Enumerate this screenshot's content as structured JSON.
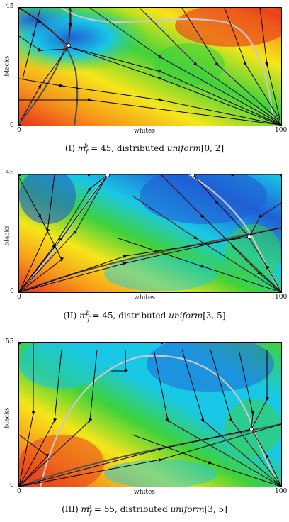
{
  "figures": [
    {
      "id": "I",
      "y_axis_label": "blacks",
      "x_axis_label": "whites",
      "y_max_tick": "45",
      "y_min_tick": "0",
      "x_min_tick": "0",
      "x_max_tick": "100",
      "caption_num": "(I)",
      "caption_math": "m",
      "caption_sub": "f",
      "caption_sup": "b",
      "caption_eq": " = 45, distributed ",
      "caption_dist": "uniform",
      "caption_range": "[0, 2]"
    },
    {
      "id": "II",
      "y_axis_label": "blacks",
      "x_axis_label": "whites",
      "y_max_tick": "45",
      "y_min_tick": "0",
      "x_min_tick": "0",
      "x_max_tick": "100",
      "caption_num": "(II)",
      "caption_math": "m",
      "caption_sub": "f",
      "caption_sup": "b",
      "caption_eq": " = 45, distributed ",
      "caption_dist": "uniform",
      "caption_range": "[3, 5]"
    },
    {
      "id": "III",
      "y_axis_label": "blacks",
      "x_axis_label": "whites",
      "y_max_tick": "55",
      "y_min_tick": "0",
      "x_min_tick": "0",
      "x_max_tick": "100",
      "caption_num": "(III)",
      "caption_math": "m",
      "caption_sub": "f",
      "caption_sup": "b",
      "caption_eq": " = 55, distributed ",
      "caption_dist": "uniform",
      "caption_range": "[3, 5]"
    }
  ],
  "colors": {
    "red": "#e8321c",
    "orange": "#f79a1a",
    "yellow": "#f5e61a",
    "green": "#3fd23a",
    "cyan": "#19c7e6",
    "blue": "#1f5fd6",
    "nullcline_light": "#c8c8c8",
    "nullcline_dark": "#555555"
  }
}
